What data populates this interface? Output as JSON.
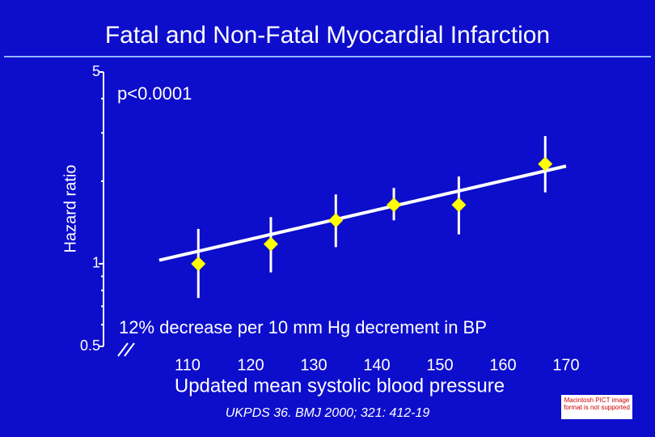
{
  "chart_data": {
    "type": "scatter",
    "title": "Fatal and Non-Fatal Myocardial Infarction",
    "subtitle": "p<0.0001",
    "annotation": "12% decrease per 10 mm Hg decrement in BP",
    "x_label": "Updated mean systolic blood pressure",
    "y_label": "Hazard ratio",
    "citation": "UKPDS 36. BMJ 2000; 321: 412-19",
    "pict_notice": "Macintosh PICT image format is not supported",
    "log_y": true,
    "xlim": [
      103,
      172
    ],
    "xticks": [
      110,
      120,
      130,
      140,
      150,
      160,
      170
    ],
    "ylim": [
      0.5,
      5
    ],
    "yticks": [
      0.5,
      1,
      5
    ],
    "yminor": [
      0.6,
      0.7,
      0.8,
      0.9,
      2,
      3,
      4
    ],
    "series": [
      {
        "color": "#ffff00",
        "x": [
          111.7,
          123.2,
          133.5,
          142.7,
          153,
          166.7
        ],
        "values": [
          1.0,
          1.18,
          1.44,
          1.64,
          1.64,
          2.31
        ],
        "lower": [
          0.75,
          0.93,
          1.15,
          1.44,
          1.28,
          1.82
        ],
        "upper": [
          1.34,
          1.48,
          1.79,
          1.89,
          2.08,
          2.92
        ]
      }
    ],
    "trend": {
      "color": "#ffffff",
      "x": [
        105.5,
        170
      ],
      "values": [
        1.03,
        2.27
      ]
    }
  }
}
